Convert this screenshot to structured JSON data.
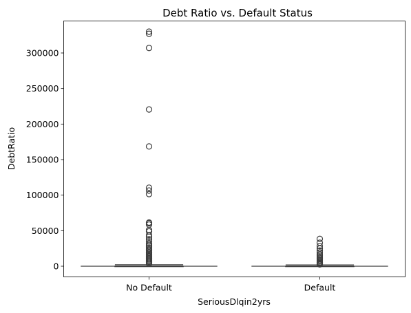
{
  "chart_data": {
    "type": "box",
    "title": "Debt Ratio vs. Default Status",
    "xlabel": "SeriousDlqin2yrs",
    "ylabel": "DebtRatio",
    "categories": [
      "No Default",
      "Default"
    ],
    "ylim": [
      -15000,
      345000
    ],
    "yticks": [
      0,
      50000,
      100000,
      150000,
      200000,
      250000,
      300000
    ],
    "ytick_labels": [
      "0",
      "50000",
      "100000",
      "150000",
      "200000",
      "250000",
      "300000"
    ],
    "grid": false,
    "legend": "none",
    "colors": {
      "box_line": "#3d3d3d",
      "outlier_edge": "#3d3d3d",
      "axes": "#000000"
    },
    "series": [
      {
        "category": "No Default",
        "whisker_low": 0,
        "q1": 0,
        "median": 0,
        "q3": 1,
        "whisker_high": 2000,
        "outliers": [
          330000,
          327000,
          307000,
          220500,
          168500,
          110500,
          106500,
          101500,
          61500,
          60500,
          58500,
          51000,
          49000,
          44000,
          41500,
          38000,
          35000,
          32500,
          30000,
          28000,
          26000,
          24000,
          22000,
          20000,
          18500,
          17000,
          15500,
          14000,
          12500,
          11000,
          9500,
          8000,
          6500,
          5000,
          3500
        ]
      },
      {
        "category": "Default",
        "whisker_low": 0,
        "q1": 0,
        "median": 0,
        "q3": 1,
        "whisker_high": 1800,
        "outliers": [
          38500,
          33000,
          28500,
          25000,
          22000,
          19500,
          17000,
          15000,
          13000,
          11500,
          10000,
          8500,
          7000,
          5500,
          4500,
          3500,
          2500
        ]
      }
    ]
  }
}
